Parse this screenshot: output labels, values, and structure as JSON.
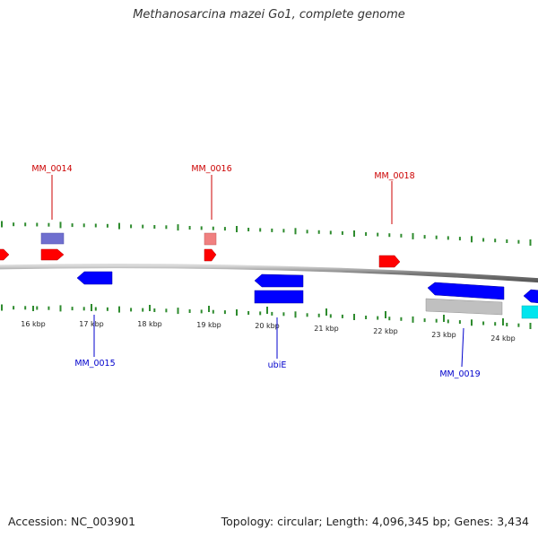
{
  "title": "Methanosarcina mazei Go1, complete genome",
  "footer": {
    "accession": "Accession: NC_003901",
    "topology": "Topology: circular; Length: 4,096,345 bp; Genes: 3,434"
  },
  "scale_labels": [
    "16 kbp",
    "17 kbp",
    "18 kbp",
    "19 kbp",
    "20 kbp",
    "21 kbp",
    "22 kbp",
    "23 kbp",
    "24 kbp"
  ],
  "gene_labels": {
    "forward": [
      "MM_0014",
      "MM_0016",
      "MM_0018"
    ],
    "reverse": [
      "MM_0015",
      "ubiE",
      "MM_0019"
    ]
  },
  "colors": {
    "backbone": "#8c8c8c",
    "tick": "#2e8b2e",
    "forward_label": "#cc0000",
    "reverse_label": "#0000cc",
    "forward_cds": "#ff0000",
    "reverse_cds": "#0000ff",
    "forward_feature": "#6f6fcf",
    "rna_feature": "#f08080",
    "reverse_feature": "#c0c0c0",
    "other_feature": "#00e5ee"
  }
}
